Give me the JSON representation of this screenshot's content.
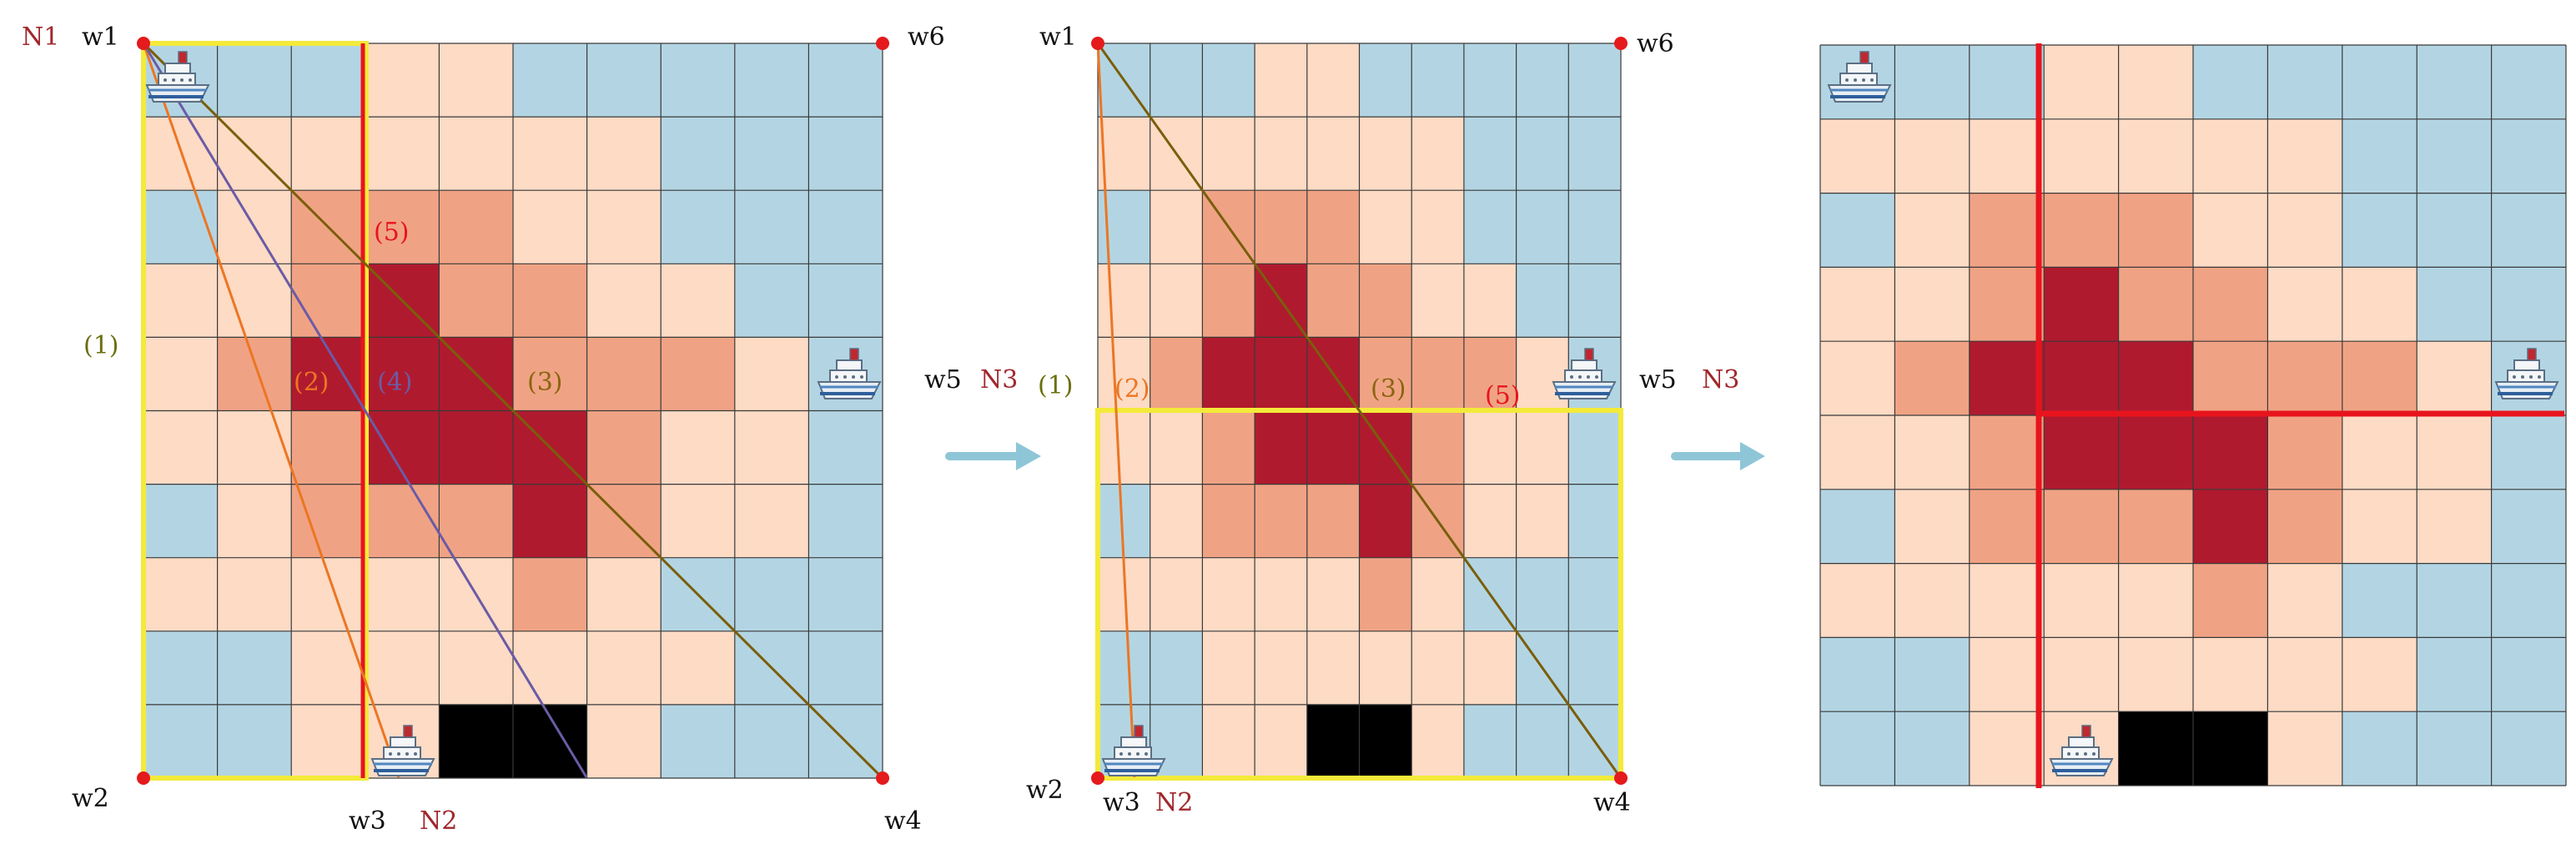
{
  "colors": {
    "blue": "#b3d5e3",
    "light": "#fddbc5",
    "mid": "#f0a384",
    "dark": "#b01a2e",
    "black": "#000000",
    "grid": "#3a3a3a",
    "yellow": "#f3ea3a",
    "red": "#e8141d",
    "olive": "#7a5e0c",
    "orange": "#ec7623",
    "purple": "#6b5ba6",
    "arrow": "#8ec6d8",
    "node_label": "#a0282d"
  },
  "grid_map": [
    "BBBLLBBBBB",
    "LLLLLLLBBB",
    "BLMMMLLBBB",
    "LLMDMMLLBB",
    "LMDDDMMMLB",
    "LLMDDDMLLB",
    "BLMMMDMLLB",
    "LLLLLMLBBB",
    "BBLLLLLLBB",
    "BBLLKKLBBB"
  ],
  "panel1": {
    "corners": {
      "tl": "w1",
      "bl": "w2",
      "b_mid": "w3",
      "br": "w4",
      "r_mid": "w5",
      "tr": "w6"
    },
    "nodes": {
      "top": "N1",
      "bottom": "N2"
    },
    "routes": {
      "r1": "(1)",
      "r2": "(2)",
      "r3": "(3)",
      "r4": "(4)",
      "r5": "(5)"
    }
  },
  "panel2": {
    "corners": {
      "tl": "w1",
      "bl": "w2",
      "b_mid": "w3",
      "br": "w4",
      "r_mid": "w5",
      "tr": "w6"
    },
    "nodes": {
      "left": "N3",
      "bottom": "N2"
    },
    "routes": {
      "r1": "(1)",
      "r2": "(2)",
      "r3": "(3)",
      "r5": "(5)"
    }
  },
  "panel3": {
    "corners": {
      "r_mid": "w5"
    },
    "nodes": {
      "right": "N3"
    }
  }
}
